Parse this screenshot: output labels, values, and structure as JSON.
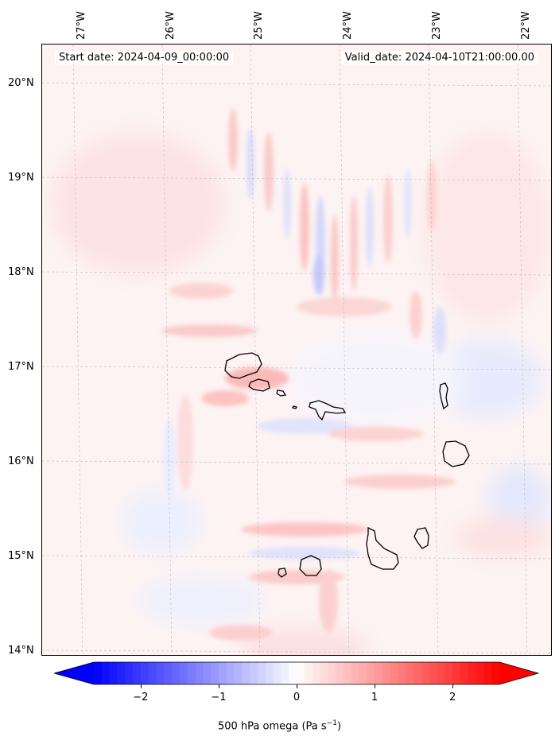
{
  "header": {
    "start_date": "Start date: 2024-04-09_00:00:00",
    "valid_date": "Valid_date: 2024-04-10T21:00:00.00"
  },
  "axes": {
    "lon_labels": [
      "27°W",
      "26°W",
      "25°W",
      "24°W",
      "23°W",
      "22°W"
    ],
    "lat_labels": [
      "20°N",
      "19°N",
      "18°N",
      "17°N",
      "16°N",
      "15°N",
      "14°N"
    ]
  },
  "colorbar": {
    "label_main": "500 hPa omega (Pa s",
    "label_exp": "−1",
    "label_close": ")",
    "ticks": [
      "−2",
      "−1",
      "0",
      "1",
      "2"
    ],
    "vmin": -2.6,
    "vmax": 2.6,
    "low_color": "#0000ff",
    "mid_color": "#ffffff",
    "high_color": "#ff0000"
  },
  "islands": [
    "Santo Antão",
    "São Vicente",
    "Santa Luzia",
    "São Nicolau",
    "Sal",
    "Boa Vista",
    "Maio",
    "Santiago",
    "Fogo",
    "Brava"
  ]
}
